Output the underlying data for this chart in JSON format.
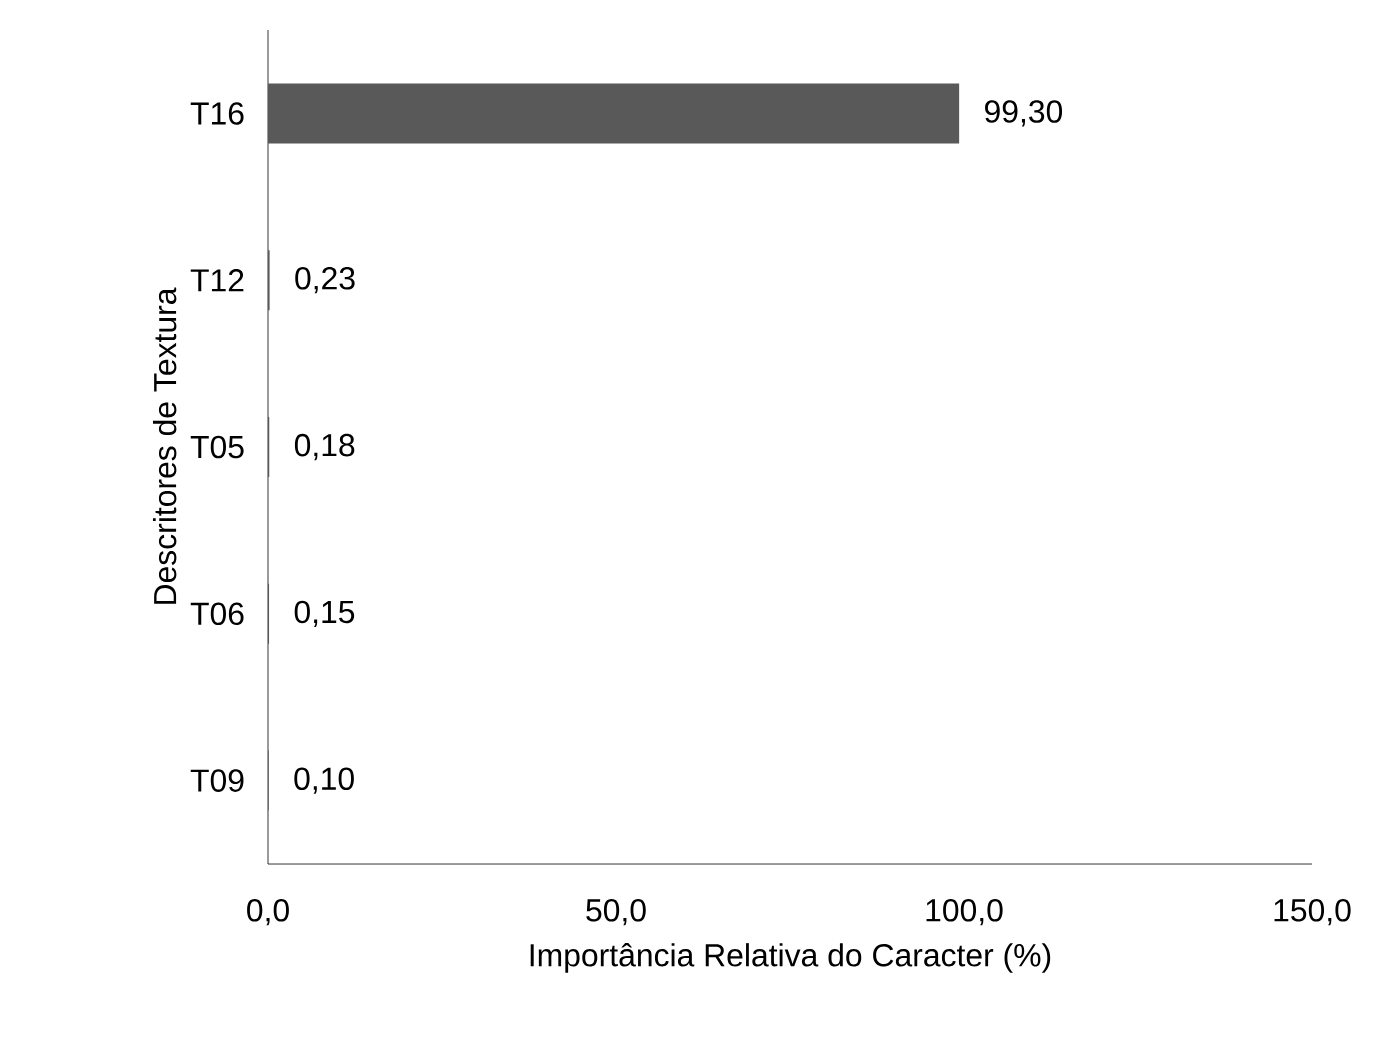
{
  "chart_data": {
    "type": "bar",
    "orientation": "horizontal",
    "xlabel": "Importância Relativa do Caracter (%)",
    "ylabel": "Descritores de Textura",
    "categories": [
      "T16",
      "T12",
      "T05",
      "T06",
      "T09"
    ],
    "values": [
      99.3,
      0.23,
      0.18,
      0.15,
      0.1
    ],
    "value_labels": [
      "99,30",
      "0,23",
      "0,18",
      "0,15",
      "0,10"
    ],
    "color": "#595959",
    "xlim": [
      0,
      150
    ],
    "xticks": [
      {
        "value": 0,
        "label": "0,0"
      },
      {
        "value": 50,
        "label": "50,0"
      },
      {
        "value": 100,
        "label": "100,0"
      },
      {
        "value": 150,
        "label": "150,0"
      }
    ]
  }
}
